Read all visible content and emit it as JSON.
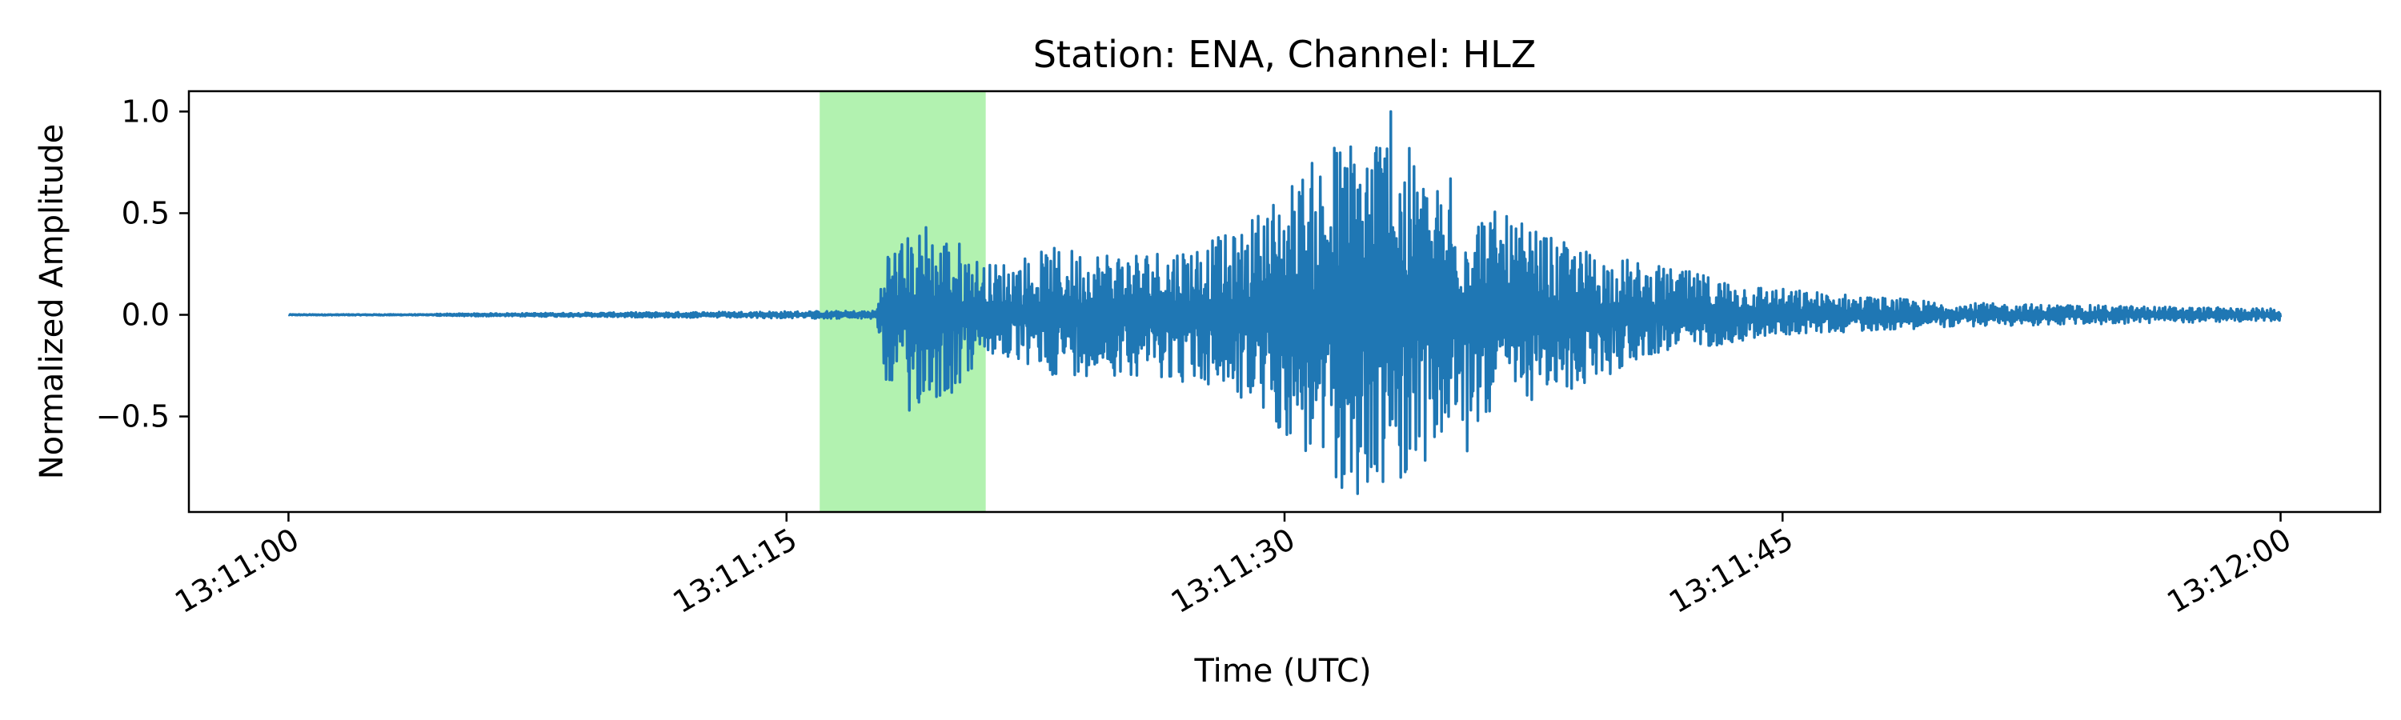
{
  "chart_data": {
    "type": "line",
    "title": "Station: ENA, Channel: HLZ",
    "xlabel": "Time (UTC)",
    "ylabel": "Normalized Amplitude",
    "x_start": "13:11:00",
    "x_end": "13:12:00",
    "xlim": [
      "13:10:57",
      "13:12:03"
    ],
    "ylim": [
      -0.97,
      1.1
    ],
    "xticks": [
      "13:11:00",
      "13:11:15",
      "13:11:30",
      "13:11:45",
      "13:12:00"
    ],
    "xtick_rotation_deg": 30,
    "yticks": [
      -0.5,
      0.0,
      0.5,
      1.0
    ],
    "ytick_labels": [
      "−0.5",
      "0.0",
      "0.5",
      "1.0"
    ],
    "grid": false,
    "highlight_window": {
      "start": "13:11:16",
      "end": "13:11:21",
      "color": "#b2f2b0"
    },
    "series": [
      {
        "color": "#1f77b4",
        "envelope": [
          {
            "x": "13:11:00",
            "max": 0.0,
            "min": 0.0
          },
          {
            "x": "13:11:17.7",
            "max": 0.02,
            "min": -0.02
          },
          {
            "x": "13:11:18.0",
            "max": 0.35,
            "min": -0.35
          },
          {
            "x": "13:11:19.0",
            "max": 0.42,
            "min": -0.45
          },
          {
            "x": "13:11:20.0",
            "max": 0.4,
            "min": -0.4
          },
          {
            "x": "13:11:21.0",
            "max": 0.25,
            "min": -0.2
          },
          {
            "x": "13:11:23.0",
            "max": 0.33,
            "min": -0.3
          },
          {
            "x": "13:11:26.0",
            "max": 0.33,
            "min": -0.3
          },
          {
            "x": "13:11:28.5",
            "max": 0.4,
            "min": -0.4
          },
          {
            "x": "13:11:30.0",
            "max": 0.65,
            "min": -0.6
          },
          {
            "x": "13:11:31.5",
            "max": 0.85,
            "min": -0.88
          },
          {
            "x": "13:11:33.0",
            "max": 1.0,
            "min": -0.85
          },
          {
            "x": "13:11:34.5",
            "max": 0.65,
            "min": -0.7
          },
          {
            "x": "13:11:36.5",
            "max": 0.5,
            "min": -0.45
          },
          {
            "x": "13:11:38.5",
            "max": 0.35,
            "min": -0.4
          },
          {
            "x": "13:11:41.0",
            "max": 0.25,
            "min": -0.2
          },
          {
            "x": "13:11:45.0",
            "max": 0.13,
            "min": -0.1
          },
          {
            "x": "13:11:50.0",
            "max": 0.06,
            "min": -0.06
          },
          {
            "x": "13:12:00.0",
            "max": 0.03,
            "min": -0.03
          }
        ],
        "spikes": [
          {
            "x": "13:11:31.5",
            "y": 0.82
          },
          {
            "x": "13:11:31.6",
            "y": -0.6
          },
          {
            "x": "13:11:32.5",
            "y": -0.82
          },
          {
            "x": "13:11:33.2",
            "y": 1.0
          },
          {
            "x": "13:11:32.2",
            "y": -0.88
          },
          {
            "x": "13:11:33.5",
            "y": -0.8
          },
          {
            "x": "13:11:34.0",
            "y": 0.6
          },
          {
            "x": "13:11:35.0",
            "y": 0.67
          },
          {
            "x": "13:11:35.5",
            "y": -0.67
          },
          {
            "x": "13:11:36.2",
            "y": 0.45
          },
          {
            "x": "13:11:18.7",
            "y": -0.47
          },
          {
            "x": "13:11:19.2",
            "y": 0.43
          }
        ]
      }
    ]
  }
}
